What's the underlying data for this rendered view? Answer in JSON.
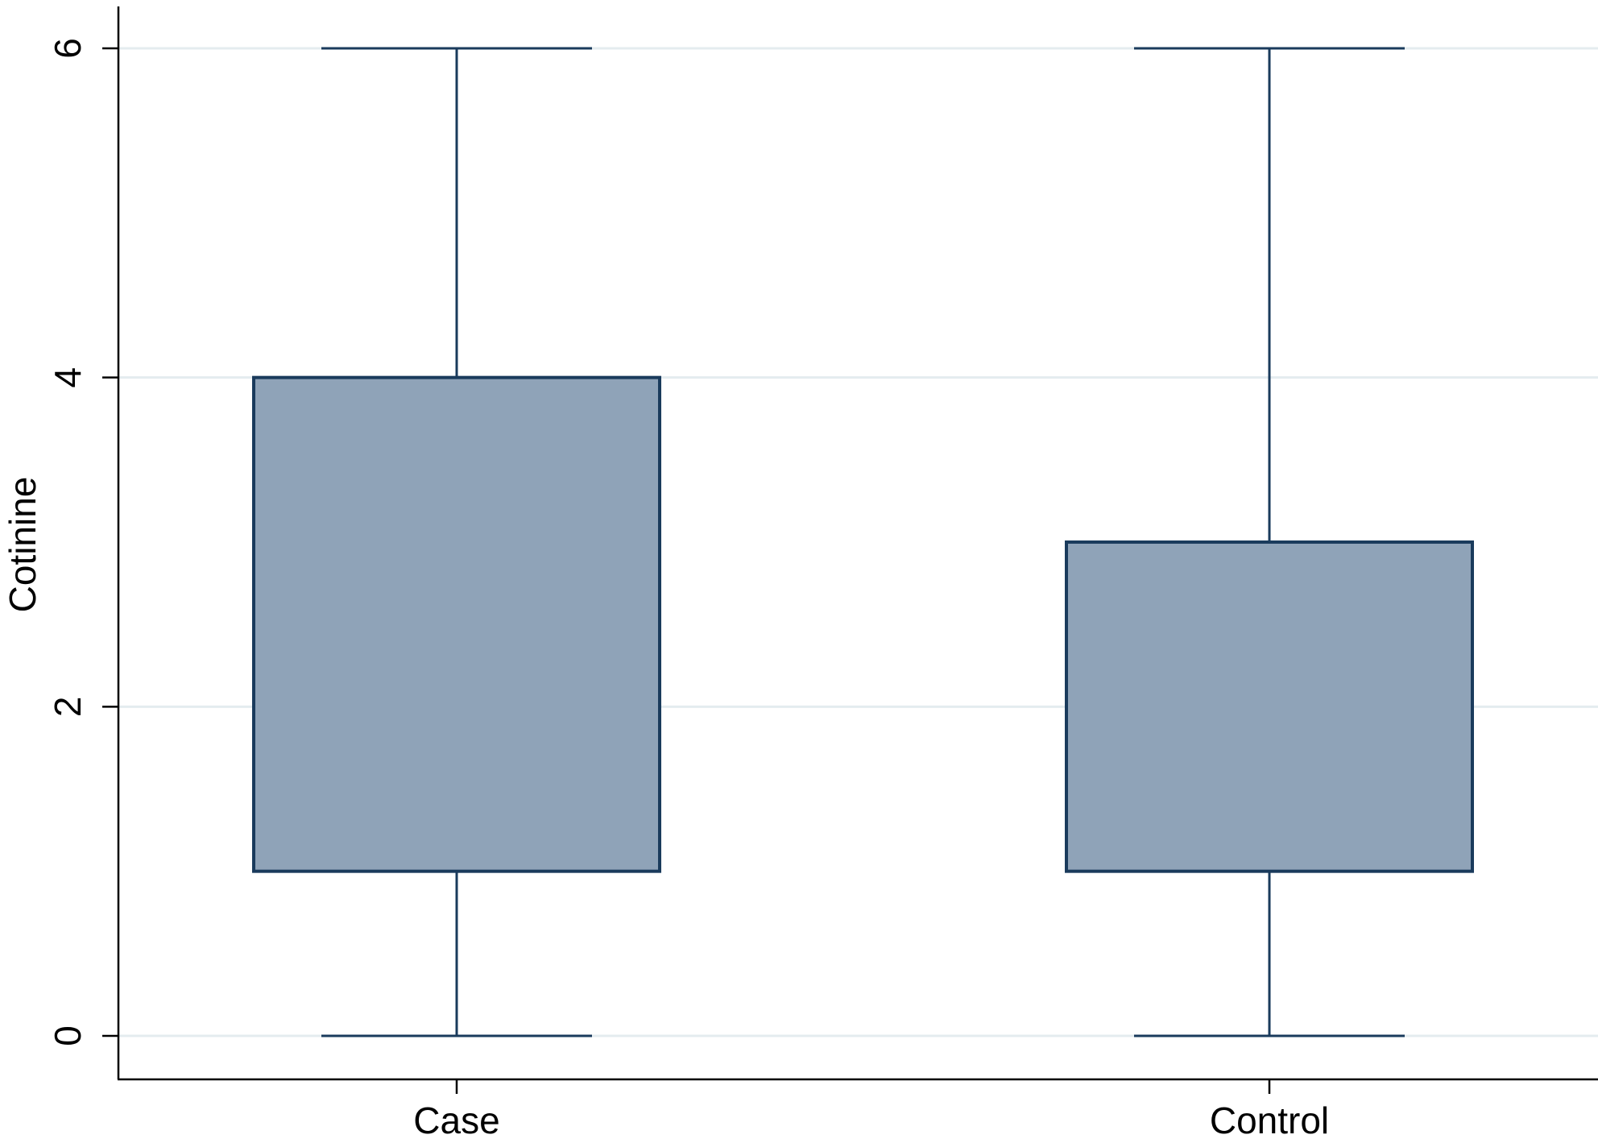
{
  "chart_data": {
    "type": "box",
    "ylabel": "Cotinine",
    "xlabel": "",
    "ylim": [
      0,
      6
    ],
    "yticks": [
      "0",
      "2",
      "4",
      "6"
    ],
    "grid": true,
    "categories": [
      "Case",
      "Control"
    ],
    "boxes": [
      {
        "category": "Case",
        "whisker_low": 0,
        "q1": 1,
        "q3": 4,
        "whisker_high": 6
      },
      {
        "category": "Control",
        "whisker_low": 0,
        "q1": 1,
        "q3": 3,
        "whisker_high": 6
      }
    ],
    "colors": {
      "box_fill": "#8fa3b8",
      "box_stroke": "#1a3b5c",
      "grid": "#e4ecef",
      "axis": "#000000"
    }
  }
}
